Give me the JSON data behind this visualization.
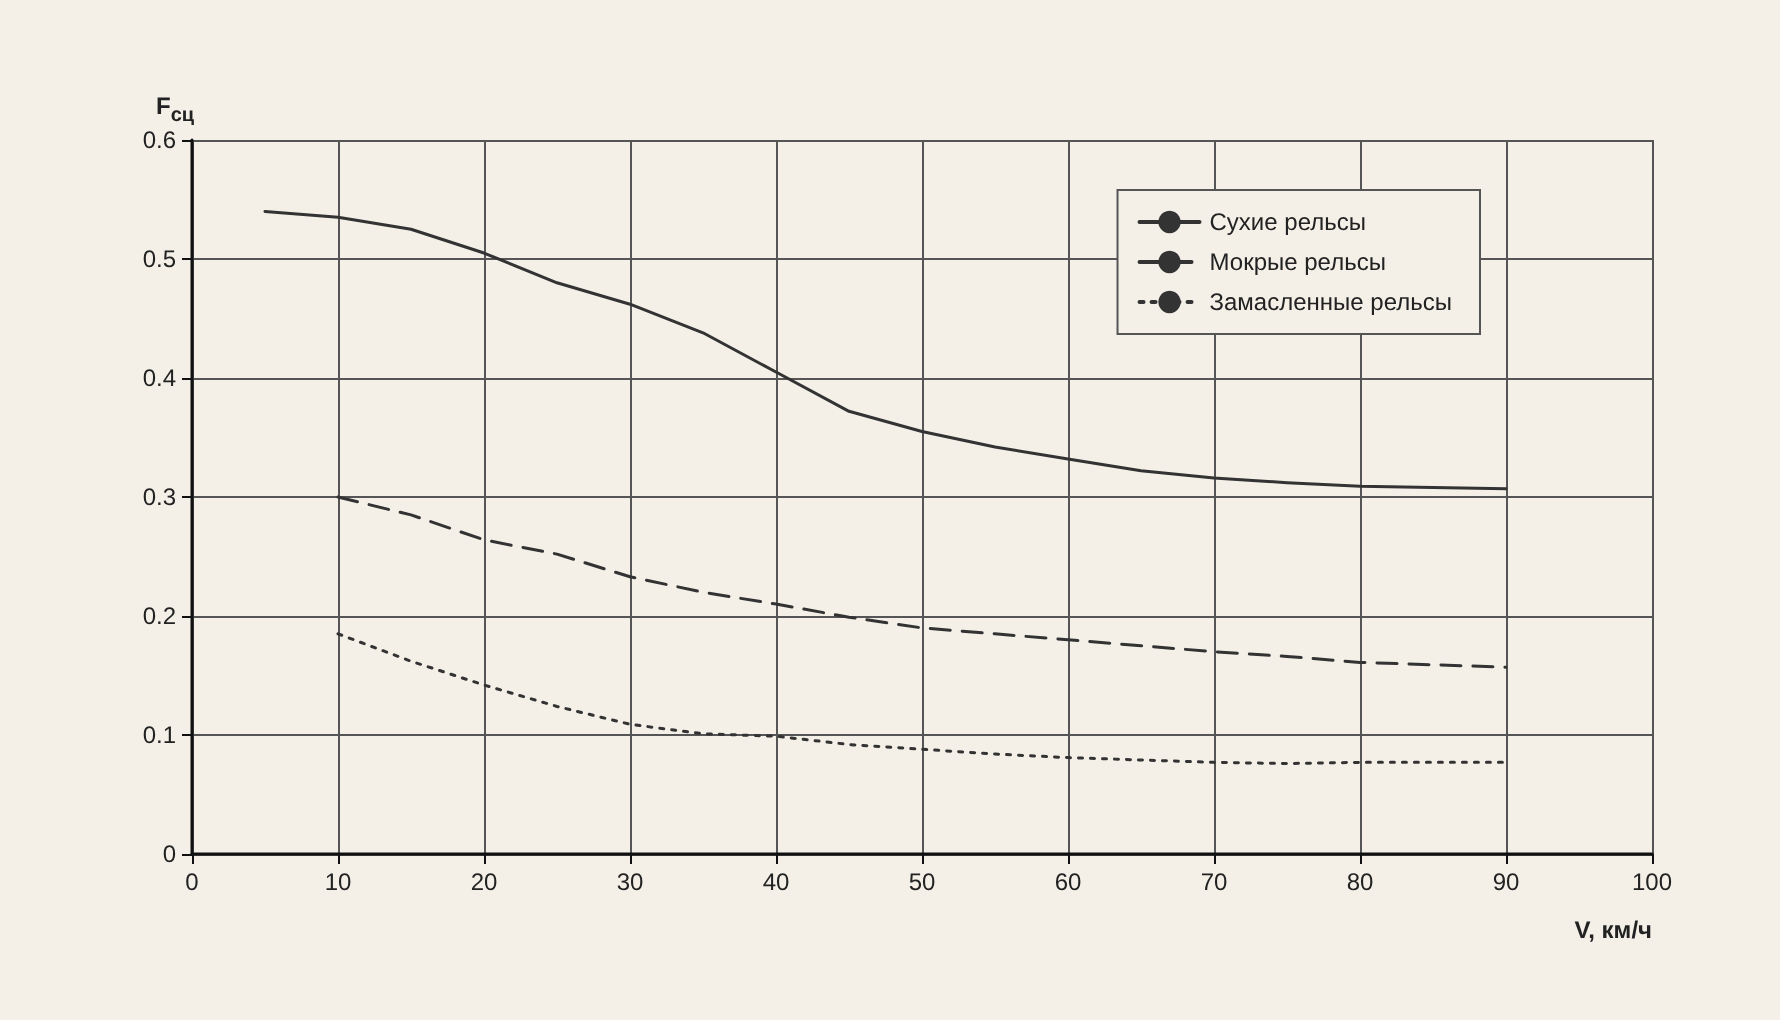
{
  "chart_data": {
    "type": "line",
    "xlabel": "V, км/ч",
    "ylabel": "F$_{сц}$",
    "xlim": [
      0,
      100
    ],
    "xticks": [
      0,
      10,
      20,
      30,
      40,
      50,
      60,
      70,
      80,
      90,
      100
    ],
    "ylim": [
      0,
      0.6
    ],
    "yticks": [
      0,
      0.1,
      0.2,
      0.3,
      0.4,
      0.5,
      0.6
    ],
    "grid": true,
    "legend": "top right",
    "marker": "none",
    "series": [
      {
        "name": "Сухие рельсы",
        "color": "#333333",
        "line_style": "solid",
        "x": [
          5,
          10,
          15,
          20,
          25,
          30,
          35,
          40,
          45,
          50,
          55,
          60,
          65,
          70,
          75,
          80,
          85,
          90
        ],
        "values": [
          0.54,
          0.535,
          0.525,
          0.505,
          0.48,
          0.462,
          0.438,
          0.405,
          0.372,
          0.355,
          0.342,
          0.332,
          0.322,
          0.316,
          0.312,
          0.309,
          0.308,
          0.307
        ]
      },
      {
        "name": "Мокрые рельсы",
        "color": "#333333",
        "line_style": "dashed",
        "x": [
          10,
          15,
          20,
          25,
          30,
          35,
          40,
          45,
          50,
          55,
          60,
          65,
          70,
          75,
          80,
          85,
          90
        ],
        "values": [
          0.3,
          0.285,
          0.264,
          0.252,
          0.233,
          0.22,
          0.21,
          0.199,
          0.19,
          0.185,
          0.18,
          0.175,
          0.17,
          0.166,
          0.161,
          0.159,
          0.157
        ]
      },
      {
        "name": "Замасленные рельсы",
        "color": "#333333",
        "line_style": "dotted",
        "x": [
          10,
          15,
          20,
          25,
          30,
          35,
          40,
          45,
          50,
          55,
          60,
          65,
          70,
          75,
          80,
          85,
          90
        ],
        "values": [
          0.185,
          0.162,
          0.142,
          0.124,
          0.109,
          0.101,
          0.099,
          0.092,
          0.088,
          0.084,
          0.081,
          0.079,
          0.077,
          0.076,
          0.077,
          0.077,
          0.077
        ]
      }
    ]
  }
}
